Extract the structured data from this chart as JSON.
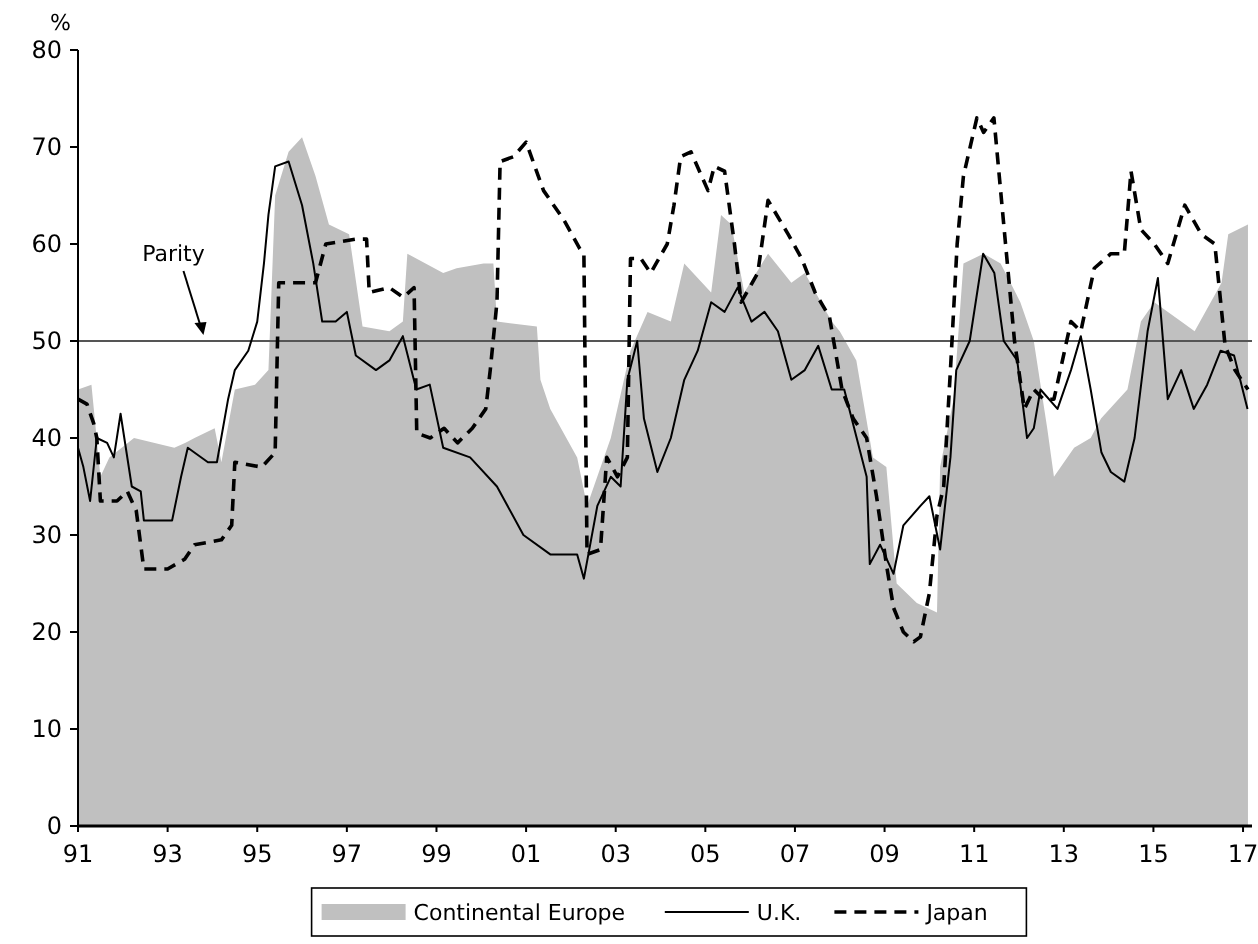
{
  "chart_data": {
    "type": "line",
    "ylabel": "%",
    "xlim": [
      1991,
      2017.2
    ],
    "xticks": [
      {
        "value": 1991,
        "label": "91"
      },
      {
        "value": 1993,
        "label": "93"
      },
      {
        "value": 1995,
        "label": "95"
      },
      {
        "value": 1997,
        "label": "97"
      },
      {
        "value": 1999,
        "label": "99"
      },
      {
        "value": 2001,
        "label": "01"
      },
      {
        "value": 2003,
        "label": "03"
      },
      {
        "value": 2005,
        "label": "05"
      },
      {
        "value": 2007,
        "label": "07"
      },
      {
        "value": 2009,
        "label": "09"
      },
      {
        "value": 2011,
        "label": "11"
      },
      {
        "value": 2013,
        "label": "13"
      },
      {
        "value": 2015,
        "label": "15"
      },
      {
        "value": 2017,
        "label": "17"
      }
    ],
    "ylim": [
      0,
      80
    ],
    "yticks": [
      0,
      10,
      20,
      30,
      40,
      50,
      60,
      70,
      80
    ],
    "grid": false,
    "legend": "bottom",
    "series": [
      {
        "name": "Continental Europe",
        "type": "area",
        "color": "#c0c0c0",
        "x": [
          1991,
          1991.3,
          1991.5,
          1991.7,
          1992.25,
          1993.15,
          1993.4,
          1993.6,
          1994.05,
          1994.2,
          1994.5,
          1994.95,
          1995.25,
          1995.4,
          1995.7,
          1996,
          1996.3,
          1996.6,
          1997.05,
          1997.35,
          1997.95,
          1998.25,
          1998.35,
          1999.15,
          1999.45,
          2000.05,
          2000.27,
          2000.35,
          2001.24,
          2001.32,
          2001.54,
          2002.14,
          2002.36,
          2002.89,
          2003.33,
          2003.71,
          2004.23,
          2004.53,
          2005.13,
          2005.35,
          2005.58,
          2005.87,
          2006.4,
          2006.92,
          2007.22,
          2007.82,
          2008.0,
          2008.37,
          2008.74,
          2009.04,
          2009.27,
          2009.72,
          2010.17,
          2010.24,
          2010.54,
          2010.76,
          2011.21,
          2011.59,
          2012.03,
          2012.33,
          2012.63,
          2012.78,
          2013.23,
          2013.6,
          2013.83,
          2014.42,
          2014.72,
          2015.02,
          2015.62,
          2015.92,
          2016.52,
          2016.67,
          2017.11
        ],
        "values": [
          45,
          45.5,
          36,
          38,
          40,
          39,
          39.5,
          40,
          41,
          37.5,
          45,
          45.5,
          47,
          65,
          69.5,
          71,
          67,
          62,
          61,
          51.5,
          51,
          52,
          59,
          57,
          57.5,
          58,
          58,
          52,
          51.5,
          46,
          43,
          38,
          33,
          40,
          49,
          53,
          52,
          58,
          55,
          63,
          62,
          55,
          59,
          56,
          57,
          52,
          51,
          48,
          38,
          37,
          25,
          23,
          22,
          37,
          44,
          58,
          59,
          58,
          54,
          50,
          41,
          36,
          39,
          40,
          42,
          45,
          52,
          54,
          52,
          51,
          56,
          61,
          62
        ]
      },
      {
        "name": "U.K.",
        "color": "#000000",
        "line_style": "solid",
        "x": [
          1991,
          1991.12,
          1991.27,
          1991.42,
          1991.65,
          1991.8,
          1991.95,
          1992.2,
          1992.4,
          1992.47,
          1992.85,
          1993.1,
          1993.3,
          1993.45,
          1993.9,
          1994.1,
          1994.35,
          1994.5,
          1994.8,
          1995,
          1995.15,
          1995.25,
          1995.4,
          1995.7,
          1996,
          1996.25,
          1996.45,
          1996.75,
          1997,
          1997.2,
          1997.65,
          1997.95,
          1998.25,
          1998.55,
          1998.85,
          1999.15,
          1999.75,
          2000.35,
          2000.94,
          2001.54,
          2002.14,
          2002.29,
          2002.59,
          2002.89,
          2003.11,
          2003.26,
          2003.48,
          2003.63,
          2003.93,
          2004.23,
          2004.53,
          2004.83,
          2005.13,
          2005.43,
          2005.72,
          2006.03,
          2006.32,
          2006.62,
          2006.92,
          2007.22,
          2007.52,
          2007.82,
          2008.1,
          2008.6,
          2008.67,
          2008.9,
          2009.2,
          2009.42,
          2009.8,
          2010.0,
          2010.24,
          2010.47,
          2010.6,
          2010.9,
          2011.2,
          2011.45,
          2011.66,
          2011.96,
          2012.18,
          2012.33,
          2012.48,
          2012.86,
          2013.16,
          2013.38,
          2013.6,
          2013.84,
          2014.05,
          2014.35,
          2014.58,
          2014.87,
          2015.1,
          2015.32,
          2015.62,
          2015.9,
          2016.2,
          2016.5,
          2016.8,
          2017.1
        ],
        "values": [
          39,
          37,
          33.5,
          40,
          39.5,
          38,
          42.5,
          35,
          34.5,
          31.5,
          31.5,
          31.5,
          36,
          39,
          37.5,
          37.5,
          44,
          47,
          49,
          52,
          58,
          63,
          68,
          68.5,
          64,
          58,
          52,
          52,
          53,
          48.5,
          47,
          48,
          50.5,
          45,
          45.5,
          39,
          38,
          35,
          30,
          28,
          28,
          25.5,
          33,
          36,
          35,
          46,
          50,
          42,
          36.5,
          40,
          46,
          49,
          54,
          53,
          55.5,
          52,
          53,
          51,
          46,
          47,
          49.5,
          45,
          45,
          36,
          27,
          29,
          26,
          31,
          33,
          34,
          28.5,
          38,
          47,
          50,
          59,
          57,
          50,
          48,
          40,
          41,
          45,
          43,
          47,
          50.5,
          45,
          38.5,
          36.5,
          35.5,
          40,
          51,
          56.5,
          44,
          47,
          43,
          45.5,
          49,
          48.5,
          43
        ]
      },
      {
        "name": "Japan",
        "color": "#000000",
        "line_style": "dashed",
        "x": [
          1991,
          1991.2,
          1991.35,
          1991.42,
          1991.5,
          1991.87,
          1992.1,
          1992.3,
          1992.47,
          1993,
          1993.38,
          1993.6,
          1994.2,
          1994.43,
          1994.5,
          1995.1,
          1995.4,
          1995.48,
          1996.3,
          1996.53,
          1997.2,
          1997.44,
          1997.5,
          1997.95,
          1998.26,
          1998.5,
          1998.56,
          1998.86,
          1999.17,
          1999.47,
          1999.8,
          2000.1,
          2000.2,
          2000.35,
          2000.42,
          2000.72,
          2001,
          2001.39,
          2001.54,
          2001.84,
          2002.2,
          2002.29,
          2002.36,
          2002.66,
          2002.8,
          2003.04,
          2003.26,
          2003.33,
          2003.56,
          2003.78,
          2004.15,
          2004.3,
          2004.45,
          2004.68,
          2005.06,
          2005.2,
          2005.43,
          2005.65,
          2005.8,
          2006.17,
          2006.4,
          2006.85,
          2007.15,
          2007.45,
          2007.77,
          2008.05,
          2008.3,
          2008.6,
          2008.82,
          2009.04,
          2009.2,
          2009.42,
          2009.65,
          2009.8,
          2010,
          2010.17,
          2010.32,
          2010.47,
          2010.62,
          2010.76,
          2011.06,
          2011.21,
          2011.44,
          2011.66,
          2011.9,
          2012.12,
          2012.33,
          2012.55,
          2012.78,
          2013.16,
          2013.38,
          2013.68,
          2014.05,
          2014.35,
          2014.5,
          2014.72,
          2015.02,
          2015.32,
          2015.7,
          2016.07,
          2016.37,
          2016.6,
          2016.82,
          2017.11
        ],
        "values": [
          44,
          43.5,
          41.5,
          40,
          33.5,
          33.5,
          34.5,
          32.5,
          26.5,
          26.5,
          27.5,
          29,
          29.5,
          31,
          37.5,
          37,
          38.5,
          56,
          56,
          60,
          60.5,
          60.5,
          55,
          55.5,
          54.5,
          55.5,
          40.5,
          40,
          41,
          39.5,
          41,
          43,
          47,
          54,
          68.5,
          69,
          70.5,
          65.5,
          64.5,
          62.5,
          59.5,
          59,
          28,
          28.5,
          38,
          36,
          38,
          58.5,
          58.5,
          57,
          60,
          64,
          69,
          69.5,
          65.5,
          68,
          67.5,
          60,
          54,
          57,
          64.5,
          61,
          58.5,
          55,
          52.5,
          45,
          42,
          40,
          34,
          27,
          22.5,
          20,
          19,
          19.5,
          24,
          32,
          35,
          47,
          60,
          67,
          73,
          71.5,
          73,
          62,
          50,
          43,
          45,
          44,
          44,
          52,
          51,
          57.5,
          59,
          59,
          67.5,
          61.5,
          60,
          58,
          64,
          61,
          60,
          49.5,
          47,
          45
        ]
      }
    ],
    "ref_lines": [
      {
        "axis": "y",
        "value": 50,
        "color": "#555555"
      }
    ],
    "annotations": [
      {
        "text": "Parity",
        "x": 1993.8,
        "y": 50
      }
    ]
  }
}
